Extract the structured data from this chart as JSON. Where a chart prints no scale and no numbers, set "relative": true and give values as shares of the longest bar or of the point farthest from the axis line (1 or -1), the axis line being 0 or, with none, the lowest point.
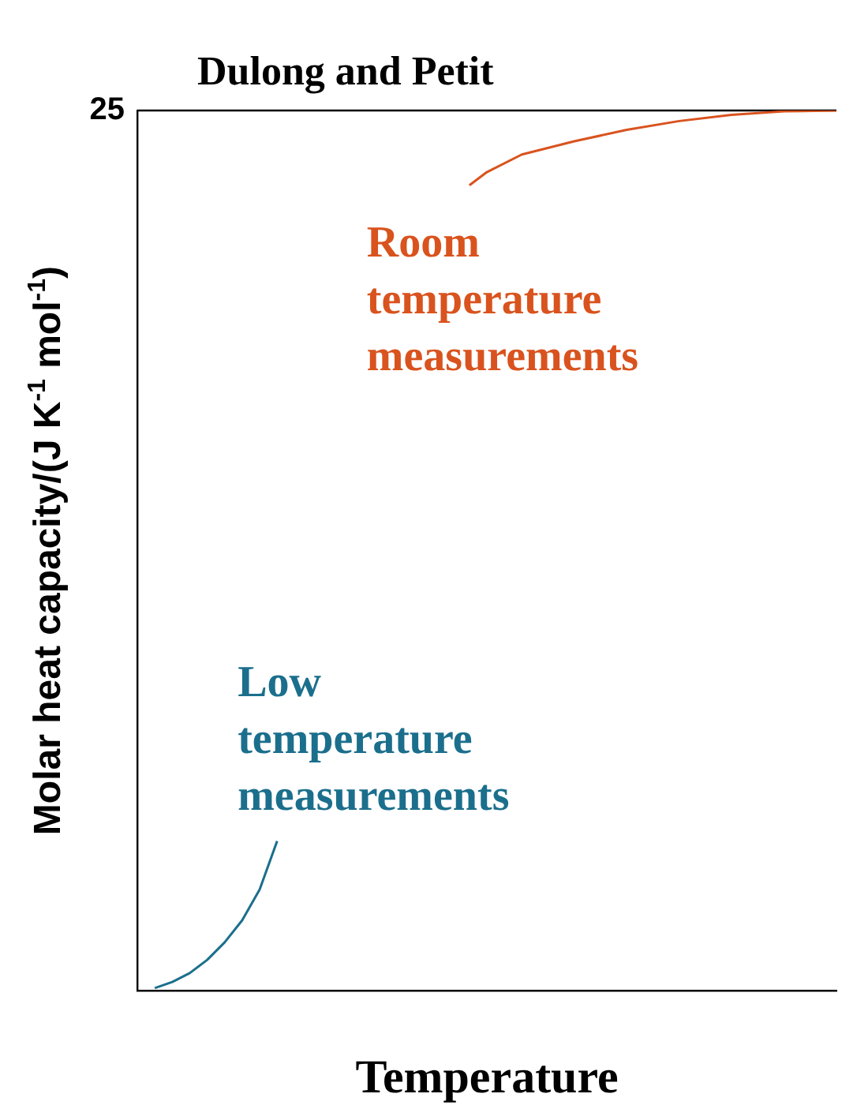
{
  "chart_data": {
    "type": "line",
    "relative": true,
    "categories": [
      null,
      null,
      null,
      null,
      null,
      null,
      null,
      null,
      null,
      null,
      null,
      null,
      null,
      null,
      null,
      null,
      null,
      null,
      null,
      null,
      null,
      null,
      null,
      null,
      null,
      null,
      null,
      null,
      null,
      null,
      null,
      null,
      null,
      null,
      null,
      null,
      null,
      null,
      null,
      null,
      null
    ],
    "series": [
      {
        "name": "Low temperature measurements",
        "color": "#1b6f8c",
        "values": [
          null,
          0.003,
          0.01,
          0.02,
          0.035,
          0.055,
          0.08,
          0.115,
          0.17,
          null,
          null,
          null,
          null,
          null,
          null,
          null,
          null,
          null,
          null,
          null,
          null,
          null,
          null,
          null,
          null,
          null,
          null,
          null,
          null,
          null,
          null,
          null,
          null,
          null,
          null,
          null,
          null,
          null,
          null,
          null,
          null
        ]
      },
      {
        "name": "Room temperature measurements",
        "color": "#d9531e",
        "values": [
          null,
          null,
          null,
          null,
          null,
          null,
          null,
          null,
          null,
          null,
          null,
          null,
          null,
          null,
          null,
          null,
          null,
          null,
          null,
          0.915,
          0.93,
          null,
          0.95,
          null,
          null,
          0.965,
          null,
          null,
          0.978,
          null,
          null,
          0.988,
          null,
          null,
          0.995,
          null,
          null,
          0.999,
          null,
          null,
          1
        ]
      }
    ],
    "ref_lines": [
      {
        "axis": "y",
        "value": 1,
        "label": "Dulong and Petit",
        "color": "#000000"
      }
    ],
    "annotations": [
      "25"
    ],
    "xlabel": "Temperature",
    "ylabel": "Molar heat capacity/(J K$^{-1}$ mol$^{-1}$)",
    "grid": false,
    "legend": false,
    "marker": "none",
    "line_style": "solid"
  }
}
